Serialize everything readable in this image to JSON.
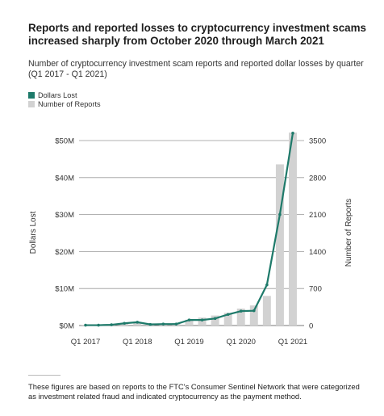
{
  "title": "Reports and reported losses to cryptocurrency investment scams increased sharply from October 2020 through March 2021",
  "subtitle": "Number of cryptocurrency investment scam reports and reported dollar losses by quarter (Q1 2017 - Q1 2021)",
  "footer": "These figures are based on reports to the FTC's Consumer Sentinel Network that were categorized as investment related fraud and indicated cryptocurrency as the payment method.",
  "colors": {
    "line": "#1e7a6a",
    "bar": "#d2d2d2",
    "grid": "#555555"
  },
  "chart_data": {
    "type": "bar+line",
    "categories": [
      "Q1 2017",
      "Q2 2017",
      "Q3 2017",
      "Q4 2017",
      "Q1 2018",
      "Q2 2018",
      "Q3 2018",
      "Q4 2018",
      "Q1 2019",
      "Q2 2019",
      "Q3 2019",
      "Q4 2019",
      "Q1 2020",
      "Q2 2020",
      "Q3 2020",
      "Q4 2020",
      "Q1 2021"
    ],
    "x_tick_labels": [
      "Q1 2017",
      "Q1 2018",
      "Q1 2019",
      "Q1 2020",
      "Q1 2021"
    ],
    "legend": [
      "Dollars Lost",
      "Number of Reports"
    ],
    "series": [
      {
        "name": "Dollars Lost",
        "type": "line",
        "axis": "left",
        "values": [
          0.1,
          0.1,
          0.2,
          0.6,
          0.9,
          0.3,
          0.4,
          0.4,
          1.5,
          1.5,
          1.9,
          3.0,
          3.9,
          4.0,
          11.0,
          30.0,
          52.0
        ]
      },
      {
        "name": "Number of Reports",
        "type": "bar",
        "axis": "right",
        "values": [
          5,
          10,
          15,
          30,
          60,
          40,
          35,
          45,
          110,
          150,
          190,
          240,
          320,
          380,
          560,
          3050,
          3650
        ]
      }
    ],
    "y_left": {
      "label": "Dollars Lost",
      "range": [
        0,
        50
      ],
      "ticks": [
        "$0M",
        "$10M",
        "$20M",
        "$30M",
        "$40M",
        "$50M"
      ]
    },
    "y_right": {
      "label": "Number of Reports",
      "range": [
        0,
        3500
      ],
      "ticks": [
        "0",
        "700",
        "1400",
        "2100",
        "2800",
        "3500"
      ]
    },
    "grid": true,
    "legend_placement": "top-left"
  }
}
